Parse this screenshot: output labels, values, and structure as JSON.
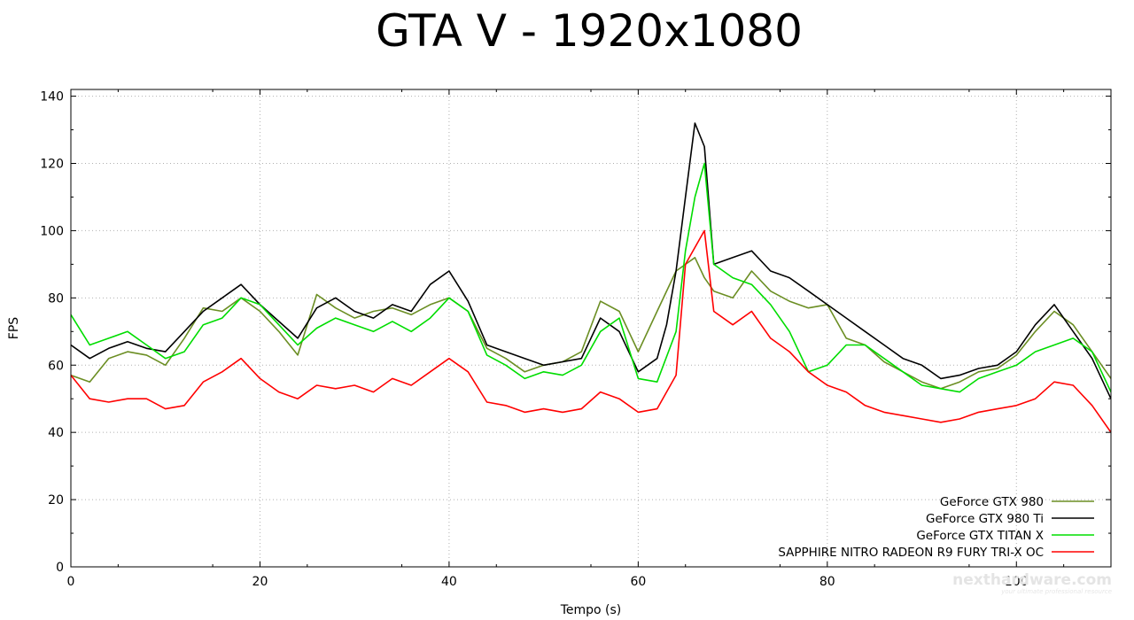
{
  "chart_data": {
    "type": "line",
    "title": "GTA V - 1920x1080",
    "xlabel": "Tempo (s)",
    "ylabel": "FPS",
    "xlim": [
      0,
      110
    ],
    "ylim": [
      0,
      142
    ],
    "x_ticks": [
      0,
      20,
      40,
      60,
      80,
      100
    ],
    "y_ticks": [
      0,
      20,
      40,
      60,
      80,
      100,
      120,
      140
    ],
    "grid": true,
    "legend_position": "bottom-right",
    "series": [
      {
        "name": "GeForce GTX 980",
        "color": "#6b8e23",
        "x": [
          0,
          2,
          4,
          6,
          8,
          10,
          12,
          14,
          16,
          18,
          20,
          22,
          24,
          26,
          28,
          30,
          32,
          34,
          36,
          38,
          40,
          42,
          44,
          46,
          48,
          50,
          52,
          54,
          56,
          58,
          60,
          62,
          64,
          66,
          67,
          68,
          70,
          72,
          74,
          76,
          78,
          80,
          82,
          84,
          86,
          88,
          90,
          92,
          94,
          96,
          98,
          100,
          102,
          104,
          106,
          108,
          110
        ],
        "y": [
          57,
          55,
          62,
          64,
          63,
          60,
          68,
          77,
          76,
          80,
          76,
          70,
          63,
          81,
          77,
          74,
          76,
          77,
          75,
          78,
          80,
          76,
          65,
          62,
          58,
          60,
          61,
          64,
          79,
          76,
          64,
          76,
          88,
          92,
          86,
          82,
          80,
          88,
          82,
          79,
          77,
          78,
          68,
          66,
          61,
          58,
          55,
          53,
          55,
          58,
          59,
          63,
          70,
          76,
          72,
          64,
          56
        ]
      },
      {
        "name": "GeForce GTX 980 Ti",
        "color": "#000000",
        "x": [
          0,
          2,
          4,
          6,
          8,
          10,
          12,
          14,
          16,
          18,
          20,
          22,
          24,
          26,
          28,
          30,
          32,
          34,
          36,
          38,
          40,
          42,
          44,
          46,
          48,
          50,
          52,
          54,
          56,
          58,
          60,
          62,
          63,
          64,
          65,
          66,
          67,
          68,
          70,
          72,
          74,
          76,
          78,
          80,
          82,
          84,
          86,
          88,
          90,
          92,
          94,
          96,
          98,
          100,
          102,
          104,
          106,
          108,
          110
        ],
        "y": [
          66,
          62,
          65,
          67,
          65,
          64,
          70,
          76,
          80,
          84,
          78,
          73,
          68,
          77,
          80,
          76,
          74,
          78,
          76,
          84,
          88,
          79,
          66,
          64,
          62,
          60,
          61,
          62,
          74,
          70,
          58,
          62,
          72,
          88,
          110,
          132,
          125,
          90,
          92,
          94,
          88,
          86,
          82,
          78,
          74,
          70,
          66,
          62,
          60,
          56,
          57,
          59,
          60,
          64,
          72,
          78,
          70,
          62,
          50
        ]
      },
      {
        "name": "GeForce GTX TITAN X",
        "color": "#00dd00",
        "x": [
          0,
          2,
          4,
          6,
          8,
          10,
          12,
          14,
          16,
          18,
          20,
          22,
          24,
          26,
          28,
          30,
          32,
          34,
          36,
          38,
          40,
          42,
          44,
          46,
          48,
          50,
          52,
          54,
          56,
          58,
          60,
          62,
          64,
          65,
          66,
          67,
          68,
          70,
          72,
          74,
          76,
          78,
          80,
          82,
          84,
          86,
          88,
          90,
          92,
          94,
          96,
          98,
          100,
          102,
          104,
          106,
          108,
          110
        ],
        "y": [
          75,
          66,
          68,
          70,
          66,
          62,
          64,
          72,
          74,
          80,
          78,
          72,
          66,
          71,
          74,
          72,
          70,
          73,
          70,
          74,
          80,
          76,
          63,
          60,
          56,
          58,
          57,
          60,
          70,
          74,
          56,
          55,
          70,
          94,
          110,
          120,
          90,
          86,
          84,
          78,
          70,
          58,
          60,
          66,
          66,
          62,
          58,
          54,
          53,
          52,
          56,
          58,
          60,
          64,
          66,
          68,
          64,
          52
        ]
      },
      {
        "name": "SAPPHIRE NITRO RADEON R9 FURY TRI-X OC",
        "color": "#ff0000",
        "x": [
          0,
          2,
          4,
          6,
          8,
          10,
          12,
          14,
          16,
          18,
          20,
          22,
          24,
          26,
          28,
          30,
          32,
          34,
          36,
          38,
          40,
          42,
          44,
          46,
          48,
          50,
          52,
          54,
          56,
          58,
          60,
          62,
          64,
          65,
          66,
          67,
          68,
          70,
          72,
          74,
          76,
          78,
          80,
          82,
          84,
          86,
          88,
          90,
          92,
          94,
          96,
          98,
          100,
          102,
          104,
          106,
          108,
          110
        ],
        "y": [
          57,
          50,
          49,
          50,
          50,
          47,
          48,
          55,
          58,
          62,
          56,
          52,
          50,
          54,
          53,
          54,
          52,
          56,
          54,
          58,
          62,
          58,
          49,
          48,
          46,
          47,
          46,
          47,
          52,
          50,
          46,
          47,
          57,
          90,
          95,
          100,
          76,
          72,
          76,
          68,
          64,
          58,
          54,
          52,
          48,
          46,
          45,
          44,
          43,
          44,
          46,
          47,
          48,
          50,
          55,
          54,
          48,
          40
        ]
      }
    ]
  },
  "watermark": {
    "brand": "nexthardware.com",
    "tagline": "your ultimate professional resource"
  }
}
